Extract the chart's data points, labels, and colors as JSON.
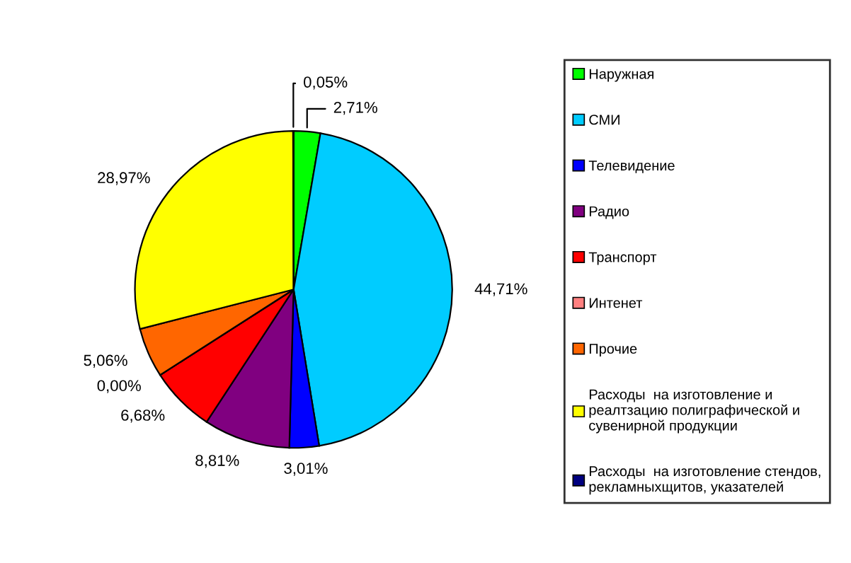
{
  "chart_data": {
    "type": "pie",
    "categories": [
      "Наружная",
      "СМИ",
      "Телевидение",
      "Радио",
      "Транспорт",
      "Интенет",
      "Прочие",
      "Расходы  на изготовление и реалтзацию полиграфической и сувенирной продукции",
      "Расходы  на изготовление стендов, рекламныхщитов, указателей"
    ],
    "values": [
      2.71,
      44.71,
      3.01,
      8.81,
      6.68,
      0.0,
      5.06,
      28.97,
      0.05
    ],
    "value_labels": [
      "2,71%",
      "44,71%",
      "3,01%",
      "8,81%",
      "6,68%",
      "0,00%",
      "5,06%",
      "28,97%",
      "0,05%"
    ],
    "colors": [
      "#00ff00",
      "#00ccff",
      "#0000ff",
      "#800080",
      "#ff0000",
      "#ff8080",
      "#ff6600",
      "#ffff00",
      "#000080"
    ],
    "legend": "right"
  }
}
